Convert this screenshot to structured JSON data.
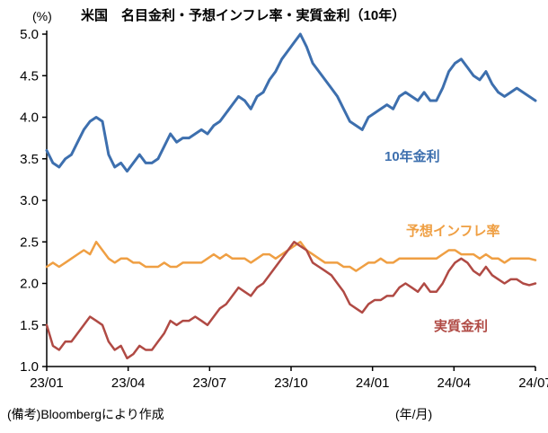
{
  "header": {
    "unit_label": "(%)",
    "title": "米国　名目金利・予想インフレ率・実質金利（10年）"
  },
  "footer": {
    "note": "(備考)Bloombergにより作成",
    "axis_unit": "(年/月)"
  },
  "chart_data": {
    "type": "line",
    "title": "米国　名目金利・予想インフレ率・実質金利（10年）",
    "ylabel": "(%)",
    "xlabel": "(年/月)",
    "ylim": [
      1.0,
      5.0
    ],
    "xlim": [
      0,
      18
    ],
    "grid": false,
    "legend_position": "inline-annotations",
    "y_ticks": [
      {
        "value": 1.0,
        "label": "1.0"
      },
      {
        "value": 1.5,
        "label": "1.5"
      },
      {
        "value": 2.0,
        "label": "2.0"
      },
      {
        "value": 2.5,
        "label": "2.5"
      },
      {
        "value": 3.0,
        "label": "3.0"
      },
      {
        "value": 3.5,
        "label": "3.5"
      },
      {
        "value": 4.0,
        "label": "4.0"
      },
      {
        "value": 4.5,
        "label": "4.5"
      },
      {
        "value": 5.0,
        "label": "5.0"
      }
    ],
    "x_ticks": [
      {
        "value": 0,
        "label": "23/01"
      },
      {
        "value": 3,
        "label": "23/04"
      },
      {
        "value": 6,
        "label": "23/07"
      },
      {
        "value": 9,
        "label": "23/10"
      },
      {
        "value": 12,
        "label": "24/01"
      },
      {
        "value": 15,
        "label": "24/04"
      },
      {
        "value": 18,
        "label": "24/07"
      }
    ],
    "series": [
      {
        "name": "10-year-nominal-yield",
        "label": "10年金利",
        "color": "#3d6fae",
        "stroke_width": 3,
        "values": [
          3.6,
          3.45,
          3.4,
          3.5,
          3.55,
          3.7,
          3.85,
          3.95,
          4.0,
          3.95,
          3.55,
          3.4,
          3.45,
          3.35,
          3.45,
          3.55,
          3.45,
          3.45,
          3.5,
          3.65,
          3.8,
          3.7,
          3.75,
          3.75,
          3.8,
          3.85,
          3.8,
          3.9,
          3.95,
          4.05,
          4.15,
          4.25,
          4.2,
          4.1,
          4.25,
          4.3,
          4.45,
          4.55,
          4.7,
          4.8,
          4.9,
          5.0,
          4.85,
          4.65,
          4.55,
          4.45,
          4.35,
          4.25,
          4.1,
          3.95,
          3.9,
          3.85,
          4.0,
          4.05,
          4.1,
          4.15,
          4.1,
          4.25,
          4.3,
          4.25,
          4.2,
          4.3,
          4.2,
          4.2,
          4.35,
          4.55,
          4.65,
          4.7,
          4.6,
          4.5,
          4.45,
          4.55,
          4.4,
          4.3,
          4.25,
          4.3,
          4.35,
          4.3,
          4.25,
          4.2
        ]
      },
      {
        "name": "expected-inflation-rate",
        "label": "予想インフレ率",
        "color": "#ef9f43",
        "stroke_width": 2.5,
        "values": [
          2.2,
          2.25,
          2.2,
          2.25,
          2.3,
          2.35,
          2.4,
          2.35,
          2.5,
          2.4,
          2.3,
          2.25,
          2.3,
          2.3,
          2.25,
          2.25,
          2.2,
          2.2,
          2.2,
          2.25,
          2.2,
          2.2,
          2.25,
          2.25,
          2.25,
          2.25,
          2.3,
          2.35,
          2.3,
          2.35,
          2.3,
          2.3,
          2.3,
          2.25,
          2.3,
          2.35,
          2.35,
          2.3,
          2.35,
          2.4,
          2.45,
          2.5,
          2.4,
          2.35,
          2.3,
          2.25,
          2.25,
          2.25,
          2.2,
          2.2,
          2.15,
          2.2,
          2.25,
          2.25,
          2.3,
          2.25,
          2.25,
          2.3,
          2.3,
          2.3,
          2.3,
          2.3,
          2.3,
          2.3,
          2.35,
          2.4,
          2.4,
          2.35,
          2.35,
          2.35,
          2.3,
          2.35,
          2.3,
          2.3,
          2.25,
          2.3,
          2.3,
          2.3,
          2.3,
          2.28
        ]
      },
      {
        "name": "real-interest-rate",
        "label": "実質金利",
        "color": "#b04a44",
        "stroke_width": 2.5,
        "values": [
          1.5,
          1.25,
          1.2,
          1.3,
          1.3,
          1.4,
          1.5,
          1.6,
          1.55,
          1.5,
          1.3,
          1.2,
          1.25,
          1.1,
          1.15,
          1.25,
          1.2,
          1.2,
          1.3,
          1.4,
          1.55,
          1.5,
          1.55,
          1.55,
          1.6,
          1.55,
          1.5,
          1.6,
          1.7,
          1.75,
          1.85,
          1.95,
          1.9,
          1.85,
          1.95,
          2.0,
          2.1,
          2.2,
          2.3,
          2.4,
          2.5,
          2.45,
          2.4,
          2.25,
          2.2,
          2.15,
          2.1,
          2.0,
          1.9,
          1.75,
          1.7,
          1.65,
          1.75,
          1.8,
          1.8,
          1.85,
          1.85,
          1.95,
          2.0,
          1.95,
          1.9,
          2.0,
          1.9,
          1.9,
          2.0,
          2.15,
          2.25,
          2.3,
          2.25,
          2.15,
          2.1,
          2.2,
          2.1,
          2.05,
          2.0,
          2.05,
          2.05,
          2.0,
          1.98,
          2.0
        ]
      }
    ]
  }
}
